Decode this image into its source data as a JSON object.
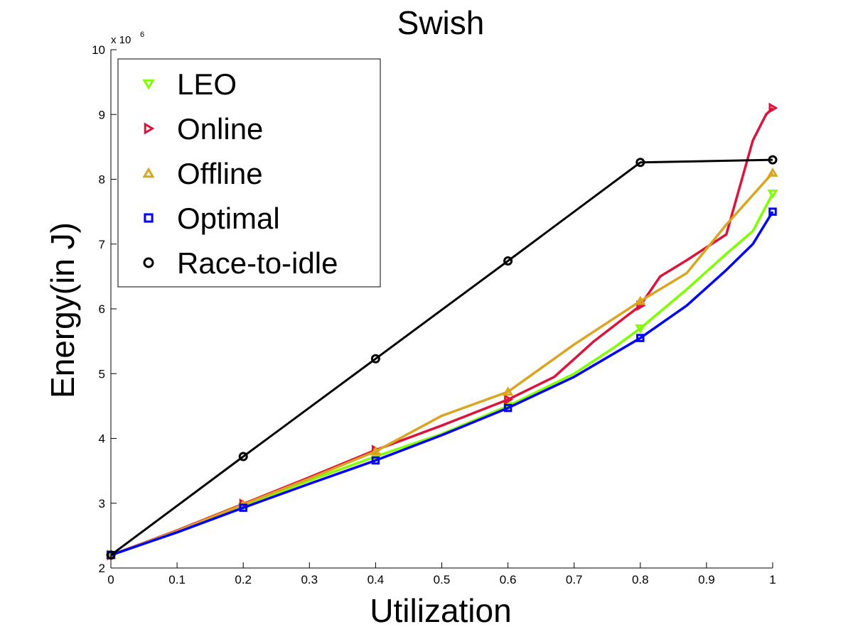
{
  "chart_data": {
    "type": "line",
    "title": "Swish",
    "xlabel": "Utilization",
    "ylabel": "Energy(in J)",
    "y_multiplier": {
      "base": "x 10",
      "exponent": "6"
    },
    "xlim": [
      0,
      1
    ],
    "ylim": [
      2,
      10
    ],
    "x_ticks": [
      "0",
      "0.1",
      "0.2",
      "0.3",
      "0.4",
      "0.5",
      "0.6",
      "0.7",
      "0.8",
      "0.9",
      "1"
    ],
    "y_ticks": [
      "2",
      "3",
      "4",
      "5",
      "6",
      "7",
      "8",
      "9",
      "10"
    ],
    "grid": false,
    "legend_position": "top-left",
    "series": [
      {
        "name": "LEO",
        "color": "#7fff00",
        "marker": "triangle-down",
        "markers_x": [
          0,
          0.2,
          0.4,
          0.6,
          0.8,
          1
        ],
        "x": [
          0,
          0.1,
          0.2,
          0.3,
          0.4,
          0.5,
          0.6,
          0.7,
          0.76,
          0.8,
          0.87,
          0.93,
          0.97,
          1
        ],
        "y": [
          2.2,
          2.56,
          2.95,
          3.35,
          3.72,
          4.07,
          4.5,
          5.0,
          5.4,
          5.7,
          6.3,
          6.85,
          7.2,
          7.78
        ]
      },
      {
        "name": "Online",
        "color": "#dc143c",
        "marker": "triangle-right",
        "markers_x": [
          0,
          0.2,
          0.4,
          0.6,
          0.8,
          1
        ],
        "x": [
          0,
          0.1,
          0.2,
          0.3,
          0.4,
          0.5,
          0.6,
          0.67,
          0.73,
          0.8,
          0.83,
          0.87,
          0.93,
          0.97,
          0.99,
          1
        ],
        "y": [
          2.2,
          2.58,
          2.99,
          3.4,
          3.82,
          4.2,
          4.6,
          4.95,
          5.5,
          6.05,
          6.5,
          6.75,
          7.15,
          8.6,
          9.0,
          9.1
        ]
      },
      {
        "name": "Offline",
        "color": "#daa520",
        "marker": "triangle-up",
        "markers_x": [
          0,
          0.2,
          0.4,
          0.6,
          0.8,
          1
        ],
        "x": [
          0,
          0.1,
          0.2,
          0.3,
          0.4,
          0.5,
          0.6,
          0.7,
          0.8,
          0.87,
          0.93,
          1
        ],
        "y": [
          2.2,
          2.57,
          2.98,
          3.38,
          3.8,
          4.35,
          4.72,
          5.45,
          6.12,
          6.55,
          7.3,
          8.1
        ]
      },
      {
        "name": "Optimal",
        "color": "#0000ff",
        "marker": "square",
        "markers_x": [
          0,
          0.2,
          0.4,
          0.6,
          0.8,
          1
        ],
        "x": [
          0,
          0.1,
          0.2,
          0.3,
          0.4,
          0.5,
          0.6,
          0.7,
          0.8,
          0.87,
          0.93,
          0.97,
          1
        ],
        "y": [
          2.2,
          2.55,
          2.93,
          3.3,
          3.66,
          4.05,
          4.47,
          4.95,
          5.55,
          6.05,
          6.6,
          7.0,
          7.5
        ]
      },
      {
        "name": "Race-to-idle",
        "color": "#000000",
        "marker": "circle",
        "markers_x": [
          0,
          0.2,
          0.4,
          0.6,
          0.8,
          1
        ],
        "x": [
          0,
          0.2,
          0.4,
          0.6,
          0.8,
          1
        ],
        "y": [
          2.2,
          3.72,
          5.23,
          6.74,
          8.26,
          8.3
        ]
      }
    ]
  }
}
